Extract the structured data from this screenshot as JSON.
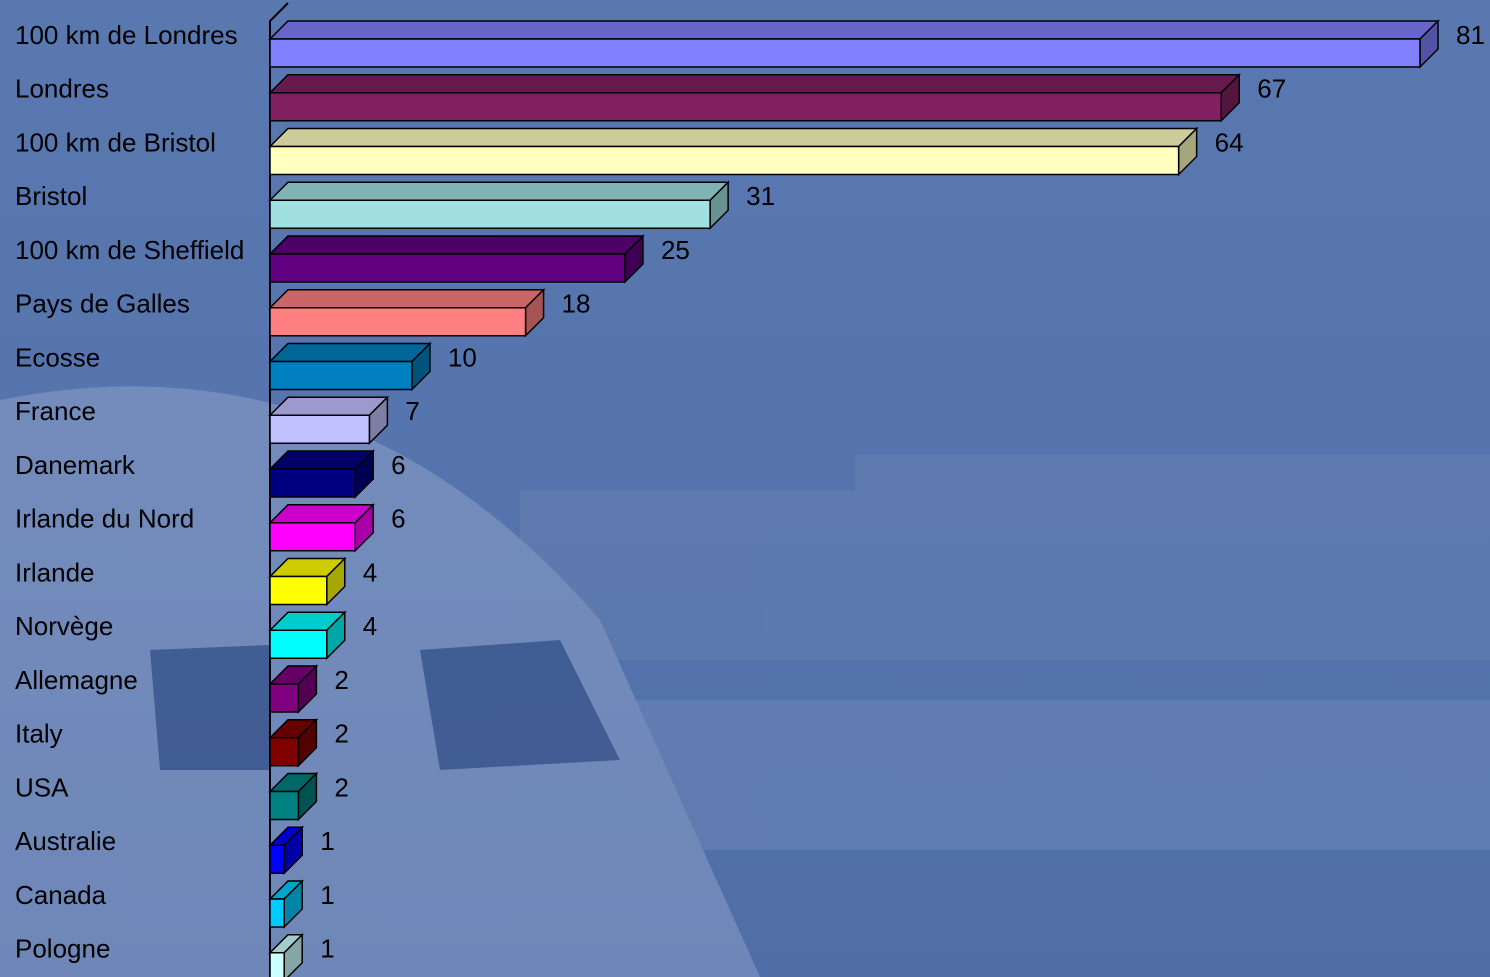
{
  "chart_data": {
    "type": "bar3d_horizontal",
    "categories": [
      "100 km de Londres",
      "Londres",
      "100 km de Bristol",
      "Bristol",
      "100 km de Sheffield",
      "Pays de Galles",
      "Ecosse",
      "France",
      "Danemark",
      "Irlande du Nord",
      "Irlande",
      "Norvège",
      "Allemagne",
      "Italy",
      "USA",
      "Australie",
      "Canada",
      "Pologne"
    ],
    "values": [
      81,
      67,
      64,
      31,
      25,
      18,
      10,
      7,
      6,
      6,
      4,
      4,
      2,
      2,
      2,
      1,
      1,
      1
    ],
    "colors": [
      "#8080ff",
      "#802060",
      "#ffffc0",
      "#a0e0e0",
      "#600080",
      "#ff8080",
      "#0080c0",
      "#c0c0ff",
      "#000080",
      "#ff00ff",
      "#ffff00",
      "#00ffff",
      "#800080",
      "#800000",
      "#008080",
      "#0000ff",
      "#00ccff",
      "#ccffff"
    ]
  }
}
